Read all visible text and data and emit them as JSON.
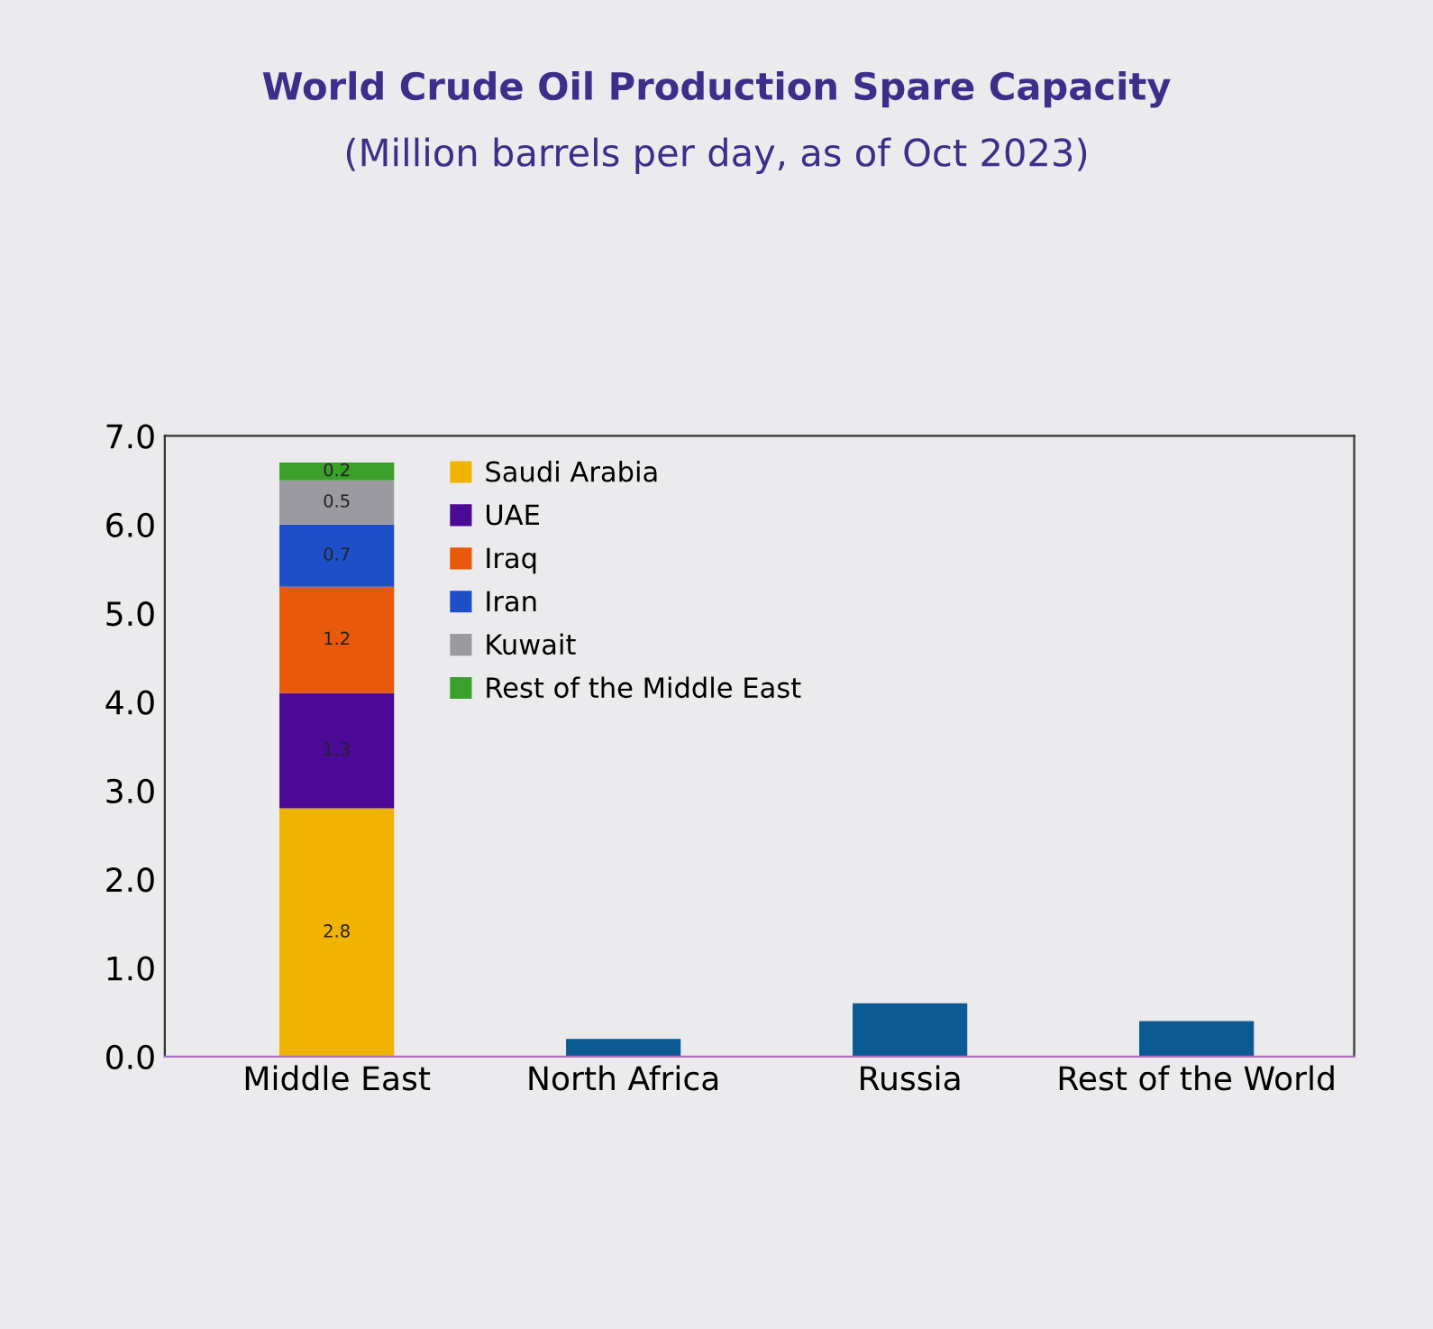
{
  "chart_data": {
    "type": "bar",
    "title": "World Crude Oil Production Spare Capacity",
    "subtitle": "(Million barrels per day, as of Oct 2023)",
    "categories": [
      "Middle East",
      "North Africa",
      "Russia",
      "Rest of the World"
    ],
    "stacked": true,
    "series": [
      {
        "name": "Saudi Arabia",
        "color": "#f0b400",
        "values": [
          2.8,
          null,
          null,
          null
        ],
        "value_labels": [
          "2.8",
          null,
          null,
          null
        ]
      },
      {
        "name": "UAE",
        "color": "#4b0a96",
        "values": [
          1.3,
          null,
          null,
          null
        ],
        "value_labels": [
          "1.3",
          null,
          null,
          null
        ]
      },
      {
        "name": "Iraq",
        "color": "#e8590c",
        "values": [
          1.2,
          null,
          null,
          null
        ],
        "value_labels": [
          "1.2",
          null,
          null,
          null
        ]
      },
      {
        "name": "Iran",
        "color": "#1f4fc8",
        "values": [
          0.7,
          null,
          null,
          null
        ],
        "value_labels": [
          "0.7",
          null,
          null,
          null
        ]
      },
      {
        "name": "Kuwait",
        "color": "#9a9aa0",
        "values": [
          0.5,
          null,
          null,
          null
        ],
        "value_labels": [
          "0.5",
          null,
          null,
          null
        ]
      },
      {
        "name": "Rest of the Middle East",
        "color": "#3aa02a",
        "values": [
          0.2,
          null,
          null,
          null
        ],
        "value_labels": [
          "0.2",
          null,
          null,
          null
        ]
      },
      {
        "color": "#0b5a94",
        "values": [
          null,
          0.2,
          0.6,
          0.4
        ]
      }
    ],
    "ylim": [
      0,
      7
    ],
    "yticks": [
      {
        "value": 0,
        "label": "0.0"
      },
      {
        "value": 1,
        "label": "1.0"
      },
      {
        "value": 2,
        "label": "2.0"
      },
      {
        "value": 3,
        "label": "3.0"
      },
      {
        "value": 4,
        "label": "4.0"
      },
      {
        "value": 5,
        "label": "5.0"
      },
      {
        "value": 6,
        "label": "6.0"
      },
      {
        "value": 7,
        "label": "7.0"
      }
    ],
    "grid": false,
    "legend": "top left"
  }
}
